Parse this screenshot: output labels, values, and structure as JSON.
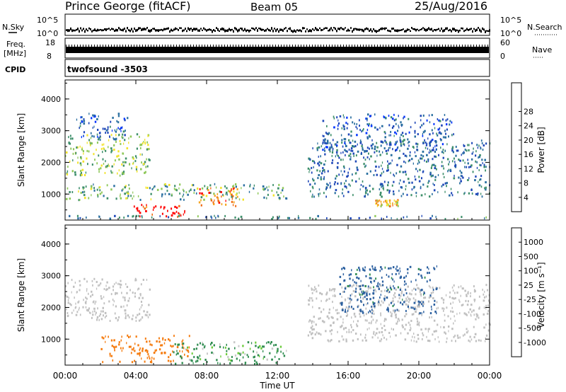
{
  "header": {
    "station": "Prince George (fitACF)",
    "beam": "Beam 05",
    "date": "25/Aug/2016"
  },
  "strips": {
    "nsky_label": "N.Sky",
    "nsearch_label": "N.Search",
    "nsky_ticks": [
      "10^5",
      "10^0"
    ],
    "nsearch_ticks": [
      "10^5",
      "10^0"
    ],
    "freq_label": "Freq.",
    "freq_unit": "[MHz]",
    "freq_ticks": [
      "18",
      "8"
    ],
    "nave_label": "Nave",
    "nave_ticks": [
      "60",
      "0"
    ],
    "cpid_label": "CPID",
    "cpid_value": "twofsound  -3503"
  },
  "panels": {
    "ylabel": "Slant Range [km]",
    "xlabel": "Time UT",
    "power_colorbar_label": "Power [dB]",
    "velocity_colorbar_label": "Velocity  [m s⁻¹]"
  },
  "colors": {
    "power_scale": [
      "#0033ff",
      "#1f48b8",
      "#2a6fa0",
      "#3d8f6a",
      "#8fc85a",
      "#f2e32a",
      "#f5a623",
      "#f06a12",
      "#ff0000"
    ],
    "velocity_scale": [
      "#2040c0",
      "#2c60a0",
      "#2f8c50",
      "#6ccc3c",
      "#c8c8c8",
      "#c8c8c8",
      "#f2a020",
      "#f57c10",
      "#ff2000"
    ],
    "ground_scatter": "#c0c0c0"
  },
  "chart_data": [
    {
      "type": "heatmap",
      "title": "Power",
      "xlabel": "Time UT",
      "ylabel": "Slant Range [km]",
      "x_ticks": [
        "00:00",
        "04:00",
        "08:00",
        "12:00",
        "16:00",
        "20:00",
        "00:00"
      ],
      "xlim_hours": [
        0,
        24
      ],
      "y_ticks": [
        1000,
        2000,
        3000,
        4000
      ],
      "ylim_km": [
        180,
        4600
      ],
      "colorbar": {
        "label": "Power [dB]",
        "ticks": [
          4,
          8,
          12,
          16,
          20,
          24,
          28
        ],
        "range": [
          0,
          32
        ]
      },
      "echo_regions": [
        {
          "t0": 0.0,
          "t1": 4.8,
          "r0": 1550,
          "r1": 2900,
          "power": 16
        },
        {
          "t0": 0.5,
          "t1": 3.5,
          "r0": 2700,
          "r1": 3550,
          "power": 6
        },
        {
          "t0": 0.0,
          "t1": 12.6,
          "r0": 800,
          "r1": 1300,
          "power": 14
        },
        {
          "t0": 3.8,
          "t1": 6.8,
          "r0": 250,
          "r1": 650,
          "power": 29
        },
        {
          "t0": 7.5,
          "t1": 9.8,
          "r0": 550,
          "r1": 1200,
          "power": 26
        },
        {
          "t0": 13.7,
          "t1": 24.0,
          "r0": 900,
          "r1": 2700,
          "power": 9
        },
        {
          "t0": 14.5,
          "t1": 22.0,
          "r0": 2300,
          "r1": 3500,
          "power": 7
        },
        {
          "t0": 17.5,
          "t1": 18.8,
          "r0": 600,
          "r1": 800,
          "power": 22
        },
        {
          "t0": 0.0,
          "t1": 24.0,
          "r0": 200,
          "r1": 300,
          "power": 10
        }
      ]
    },
    {
      "type": "heatmap",
      "title": "Velocity",
      "xlabel": "Time UT",
      "ylabel": "Slant Range [km]",
      "x_ticks": [
        "00:00",
        "04:00",
        "08:00",
        "12:00",
        "16:00",
        "20:00",
        "00:00"
      ],
      "xlim_hours": [
        0,
        24
      ],
      "y_ticks": [
        1000,
        2000,
        3000,
        4000
      ],
      "ylim_km": [
        180,
        4600
      ],
      "colorbar": {
        "label": "Velocity [m s^-1]",
        "ticks": [
          1000,
          500,
          100,
          25,
          -25,
          -100,
          -500,
          -1000
        ]
      },
      "echo_regions": [
        {
          "t0": 0.0,
          "t1": 4.8,
          "r0": 1550,
          "r1": 2900,
          "velocity": 0,
          "ground_scatter": true
        },
        {
          "t0": 2.0,
          "t1": 7.0,
          "r0": 250,
          "r1": 1100,
          "velocity": -300
        },
        {
          "t0": 6.0,
          "t1": 12.5,
          "r0": 200,
          "r1": 900,
          "velocity": 120
        },
        {
          "t0": 13.7,
          "t1": 24.0,
          "r0": 900,
          "r1": 2700,
          "velocity": 0,
          "ground_scatter": true
        },
        {
          "t0": 15.5,
          "t1": 21.0,
          "r0": 1800,
          "r1": 3300,
          "velocity": 400
        }
      ]
    }
  ]
}
